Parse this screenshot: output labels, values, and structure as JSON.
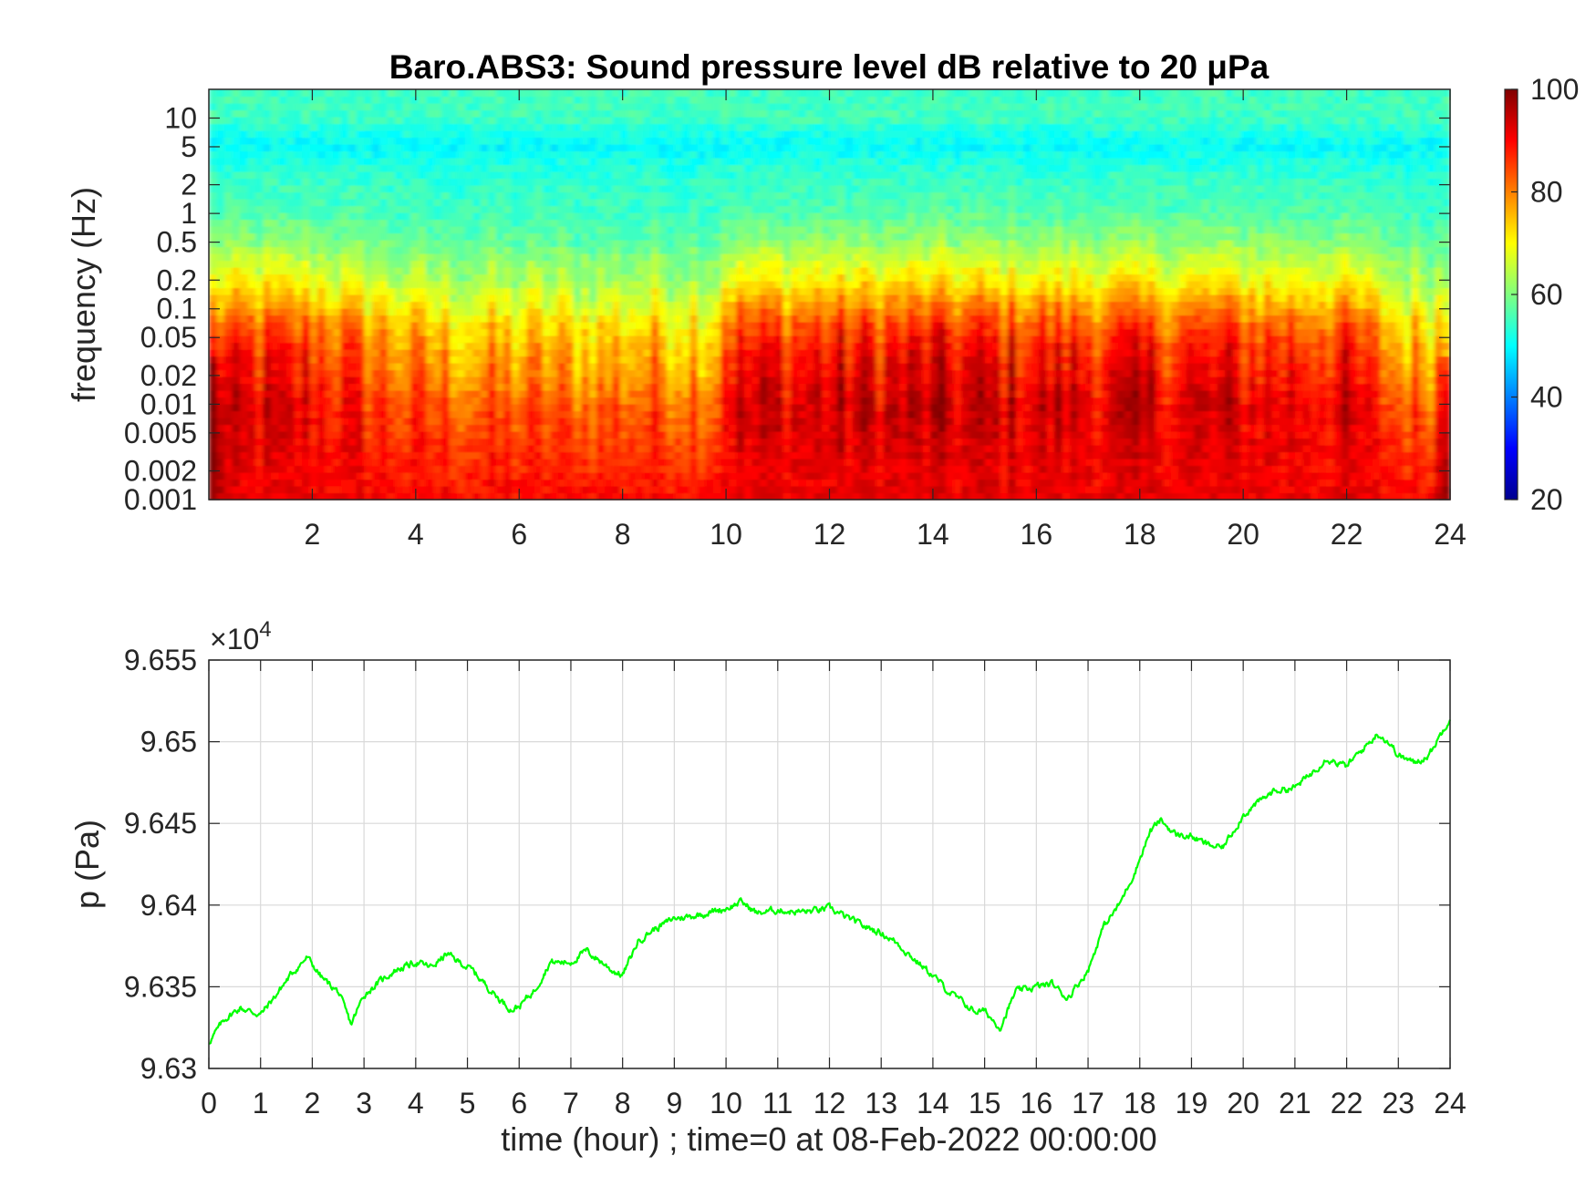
{
  "colors": {
    "background": "#ffffff",
    "axis": "#262626",
    "grid": "#d9d9d9",
    "line": "#00ff00"
  },
  "chart_data": [
    {
      "type": "heatmap",
      "title": "Baro.ABS3: Sound pressure level dB relative to 20 μPa",
      "xlabel": "",
      "ylabel": "frequency (Hz)",
      "xlim": [
        0,
        24
      ],
      "x_ticks": [
        "2",
        "4",
        "6",
        "8",
        "10",
        "12",
        "14",
        "16",
        "18",
        "20",
        "22",
        "24"
      ],
      "y_scale": "log",
      "ylim": [
        0.001,
        20
      ],
      "y_ticks": [
        {
          "value": 0.001,
          "label": "0.001"
        },
        {
          "value": 0.002,
          "label": "0.002"
        },
        {
          "value": 0.005,
          "label": "0.005"
        },
        {
          "value": 0.01,
          "label": "0.01"
        },
        {
          "value": 0.02,
          "label": "0.02"
        },
        {
          "value": 0.05,
          "label": "0.05"
        },
        {
          "value": 0.1,
          "label": "0.1"
        },
        {
          "value": 0.2,
          "label": "0.2"
        },
        {
          "value": 0.5,
          "label": "0.5"
        },
        {
          "value": 1,
          "label": "1"
        },
        {
          "value": 2,
          "label": "2"
        },
        {
          "value": 5,
          "label": "5"
        },
        {
          "value": 10,
          "label": "10"
        }
      ],
      "colormap": "jet",
      "colorbar": {
        "range": [
          20,
          100
        ],
        "ticks": [
          "20",
          "40",
          "60",
          "80",
          "100"
        ]
      },
      "level_profile_db": [
        {
          "freq_hz": 0.001,
          "db": 90
        },
        {
          "freq_hz": 0.002,
          "db": 88
        },
        {
          "freq_hz": 0.005,
          "db": 86
        },
        {
          "freq_hz": 0.01,
          "db": 84
        },
        {
          "freq_hz": 0.02,
          "db": 80
        },
        {
          "freq_hz": 0.05,
          "db": 76
        },
        {
          "freq_hz": 0.1,
          "db": 70
        },
        {
          "freq_hz": 0.2,
          "db": 64
        },
        {
          "freq_hz": 0.5,
          "db": 58
        },
        {
          "freq_hz": 1,
          "db": 55
        },
        {
          "freq_hz": 2,
          "db": 54
        },
        {
          "freq_hz": 5,
          "db": 50
        },
        {
          "freq_hz": 10,
          "db": 55
        },
        {
          "freq_hz": 20,
          "db": 55
        }
      ],
      "activity_by_hour": [
        {
          "hour": 0,
          "level": 0.8
        },
        {
          "hour": 2,
          "level": 0.8
        },
        {
          "hour": 4,
          "level": 0.3
        },
        {
          "hour": 6,
          "level": 0.2
        },
        {
          "hour": 8,
          "level": 0.25
        },
        {
          "hour": 9.8,
          "level": 0.3
        },
        {
          "hour": 10,
          "level": 0.9
        },
        {
          "hour": 14,
          "level": 1.0
        },
        {
          "hour": 18,
          "level": 0.9
        },
        {
          "hour": 22,
          "level": 0.85
        },
        {
          "hour": 23,
          "level": 0.3
        },
        {
          "hour": 24,
          "level": 0.3
        }
      ]
    },
    {
      "type": "line",
      "title": "",
      "xlabel": "time (hour) ; time=0 at 08-Feb-2022 00:00:00",
      "ylabel": "p (Pa)",
      "y_exponent_label": "×10",
      "y_exponent": "4",
      "xlim": [
        0,
        24
      ],
      "ylim": [
        96300,
        96550
      ],
      "x_ticks": [
        "0",
        "1",
        "2",
        "3",
        "4",
        "5",
        "6",
        "7",
        "8",
        "9",
        "10",
        "11",
        "12",
        "13",
        "14",
        "15",
        "16",
        "17",
        "18",
        "19",
        "20",
        "21",
        "22",
        "23",
        "24"
      ],
      "y_ticks": [
        {
          "value": 96300,
          "label": "9.63"
        },
        {
          "value": 96350,
          "label": "9.635"
        },
        {
          "value": 96400,
          "label": "9.64"
        },
        {
          "value": 96450,
          "label": "9.645"
        },
        {
          "value": 96500,
          "label": "9.65"
        },
        {
          "value": 96550,
          "label": "9.655"
        }
      ],
      "grid": true,
      "series": [
        {
          "x": [
            0,
            0.3,
            0.6,
            1.0,
            1.3,
            1.6,
            1.9,
            2.2,
            2.5,
            2.75,
            3.0,
            3.3,
            3.6,
            4.0,
            4.3,
            4.6,
            4.85,
            5.1,
            5.3,
            5.6,
            5.85,
            6.0,
            6.3,
            6.6,
            7.0,
            7.3,
            7.6,
            7.8,
            8.0,
            8.3,
            8.6,
            9.0,
            9.3,
            9.6,
            10.0,
            10.3,
            10.6,
            11.0,
            11.3,
            11.6,
            12.0,
            12.3,
            12.6,
            13.0,
            13.3,
            13.6,
            14.0,
            14.3,
            14.6,
            14.8,
            15.0,
            15.3,
            15.6,
            16.0,
            16.3,
            16.6,
            17.0,
            17.3,
            17.6,
            17.9,
            18.2,
            18.4,
            18.7,
            19.0,
            19.3,
            19.6,
            20.0,
            20.3,
            20.6,
            21.0,
            21.3,
            21.6,
            22.0,
            22.3,
            22.6,
            22.8,
            23.0,
            23.3,
            23.6,
            24.0
          ],
          "y": [
            96316,
            96330,
            96337,
            96333,
            96345,
            96358,
            96368,
            96355,
            96347,
            96327,
            96345,
            96353,
            96360,
            96365,
            96362,
            96370,
            96365,
            96360,
            96353,
            96343,
            96336,
            96338,
            96348,
            96365,
            96365,
            96372,
            96365,
            96360,
            96357,
            96378,
            96385,
            96392,
            96393,
            96395,
            96398,
            96402,
            96395,
            96397,
            96396,
            96396,
            96398,
            96393,
            96388,
            96383,
            96377,
            96368,
            96357,
            96347,
            96340,
            96335,
            96335,
            96325,
            96347,
            96350,
            96352,
            96343,
            96360,
            96387,
            96400,
            96420,
            96445,
            96452,
            96443,
            96442,
            96437,
            96435,
            96455,
            96463,
            96470,
            96472,
            96480,
            96490,
            96485,
            96495,
            96505,
            96500,
            96492,
            96487,
            96492,
            96515
          ]
        }
      ]
    }
  ]
}
